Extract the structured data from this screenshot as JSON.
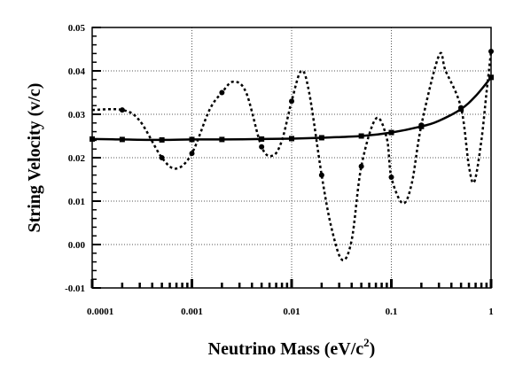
{
  "chart_data": {
    "type": "line",
    "title": "",
    "xlabel": "Neutrino Mass (eV/c",
    "xlabel_superscript": "2",
    "xlabel_suffix": ")",
    "ylabel": "String Velocity (v/c)",
    "x_scale": "log",
    "xlim": [
      0.0001,
      1
    ],
    "ylim": [
      -0.01,
      0.05
    ],
    "grid": "dotted",
    "legend": "none",
    "x_ticks": [
      {
        "value": 0.0001,
        "label": "0.0001"
      },
      {
        "value": 0.001,
        "label": "0.001"
      },
      {
        "value": 0.01,
        "label": "0.01"
      },
      {
        "value": 0.1,
        "label": "0.1"
      },
      {
        "value": 1,
        "label": "1"
      }
    ],
    "y_ticks": [
      {
        "value": -0.01,
        "label": "-0.01"
      },
      {
        "value": 0.0,
        "label": "0.00"
      },
      {
        "value": 0.01,
        "label": "0.01"
      },
      {
        "value": 0.02,
        "label": "0.02"
      },
      {
        "value": 0.03,
        "label": "0.03"
      },
      {
        "value": 0.04,
        "label": "0.04"
      },
      {
        "value": 0.05,
        "label": "0.05"
      }
    ],
    "series": [
      {
        "style": "solid",
        "marker": "square",
        "color": "#000000",
        "points": [
          [
            0.0001,
            0.0243
          ],
          [
            0.0002,
            0.0242
          ],
          [
            0.0005,
            0.0241
          ],
          [
            0.001,
            0.0242
          ],
          [
            0.002,
            0.0242
          ],
          [
            0.005,
            0.0243
          ],
          [
            0.01,
            0.0244
          ],
          [
            0.02,
            0.0246
          ],
          [
            0.05,
            0.025
          ],
          [
            0.1,
            0.0258
          ],
          [
            0.2,
            0.0272
          ],
          [
            0.5,
            0.0312
          ],
          [
            1,
            0.0385
          ]
        ],
        "curve": [
          [
            0.0001,
            0.0243
          ],
          [
            0.0002,
            0.0242
          ],
          [
            0.0005,
            0.0241
          ],
          [
            0.001,
            0.0242
          ],
          [
            0.002,
            0.0242
          ],
          [
            0.005,
            0.0243
          ],
          [
            0.01,
            0.0244
          ],
          [
            0.02,
            0.0246
          ],
          [
            0.05,
            0.025
          ],
          [
            0.1,
            0.0258
          ],
          [
            0.2,
            0.0272
          ],
          [
            0.3,
            0.0285
          ],
          [
            0.5,
            0.0312
          ],
          [
            0.7,
            0.0342
          ],
          [
            1,
            0.0385
          ]
        ]
      },
      {
        "style": "dashed",
        "marker": "circle",
        "color": "#000000",
        "points": [
          [
            0.0002,
            0.031
          ],
          [
            0.0005,
            0.02
          ],
          [
            0.001,
            0.021
          ],
          [
            0.002,
            0.035
          ],
          [
            0.005,
            0.0225
          ],
          [
            0.01,
            0.033
          ],
          [
            0.02,
            0.016
          ],
          [
            0.05,
            0.018
          ],
          [
            0.1,
            0.0155
          ],
          [
            0.2,
            0.0275
          ],
          [
            0.5,
            0.0315
          ],
          [
            1,
            0.0445
          ]
        ],
        "curve": [
          [
            0.0001,
            0.031
          ],
          [
            0.0002,
            0.031
          ],
          [
            0.0003,
            0.0285
          ],
          [
            0.0005,
            0.02
          ],
          [
            0.0007,
            0.0175
          ],
          [
            0.001,
            0.021
          ],
          [
            0.0015,
            0.031
          ],
          [
            0.002,
            0.035
          ],
          [
            0.0026,
            0.0375
          ],
          [
            0.0035,
            0.035
          ],
          [
            0.005,
            0.0225
          ],
          [
            0.0065,
            0.0205
          ],
          [
            0.008,
            0.024
          ],
          [
            0.01,
            0.033
          ],
          [
            0.0125,
            0.04
          ],
          [
            0.015,
            0.035
          ],
          [
            0.02,
            0.016
          ],
          [
            0.025,
            0.004
          ],
          [
            0.032,
            -0.0035
          ],
          [
            0.04,
            0.001
          ],
          [
            0.05,
            0.018
          ],
          [
            0.07,
            0.029
          ],
          [
            0.09,
            0.0245
          ],
          [
            0.1,
            0.0155
          ],
          [
            0.13,
            0.0095
          ],
          [
            0.16,
            0.014
          ],
          [
            0.2,
            0.0275
          ],
          [
            0.3,
            0.0435
          ],
          [
            0.35,
            0.04
          ],
          [
            0.5,
            0.0315
          ],
          [
            0.6,
            0.018
          ],
          [
            0.68,
            0.0145
          ],
          [
            0.8,
            0.024
          ],
          [
            0.9,
            0.035
          ],
          [
            1,
            0.0445
          ]
        ]
      }
    ]
  }
}
